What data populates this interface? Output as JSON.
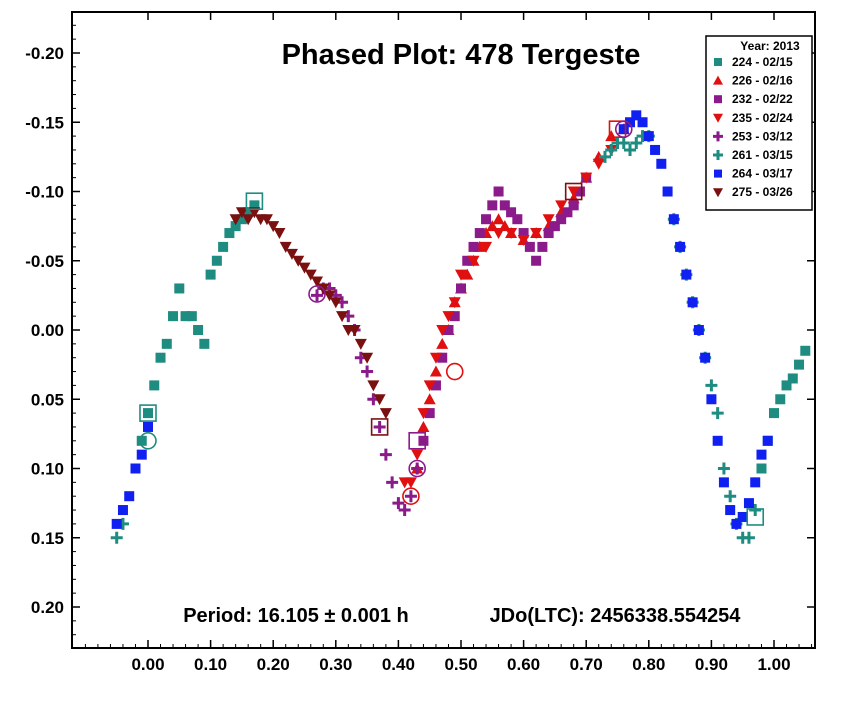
{
  "chart_data": {
    "type": "scatter",
    "title": "Phased Plot: 478 Tergeste",
    "annotations": {
      "period": "Period: 16.105 ± 0.001 h",
      "epoch": "JDo(LTC): 2456338.554254"
    },
    "legend": {
      "title": "Year: 2013",
      "placement": "top-right"
    },
    "xlim": [
      -0.1,
      1.08
    ],
    "ylim": [
      0.25,
      -0.25
    ],
    "x_ticks": [
      "0.00",
      "0.10",
      "0.20",
      "0.30",
      "0.40",
      "0.50",
      "0.60",
      "0.70",
      "0.80",
      "0.90",
      "1.00"
    ],
    "x_tick_values": [
      0.0,
      0.1,
      0.2,
      0.3,
      0.4,
      0.5,
      0.6,
      0.7,
      0.8,
      0.9,
      1.0
    ],
    "y_ticks": [
      "-0.20",
      "-0.15",
      "-0.10",
      "-0.05",
      "0.00",
      "0.05",
      "0.10",
      "0.15",
      "0.20"
    ],
    "y_tick_values": [
      -0.2,
      -0.15,
      -0.1,
      -0.05,
      0.0,
      0.05,
      0.1,
      0.15,
      0.2
    ],
    "grid": false,
    "series": [
      {
        "name": "224 - 02/15",
        "color": "#1e8c80",
        "marker": "square",
        "x": [
          -0.01,
          0.0,
          0.01,
          0.02,
          0.03,
          0.04,
          0.05,
          0.06,
          0.07,
          0.08,
          0.09,
          0.1,
          0.11,
          0.12,
          0.13,
          0.14,
          0.15,
          0.16,
          0.17,
          0.98,
          0.99,
          1.0,
          1.01,
          1.02,
          1.03,
          1.04,
          1.05
        ],
        "y": [
          0.08,
          0.06,
          0.04,
          0.02,
          0.01,
          -0.01,
          -0.03,
          -0.01,
          -0.01,
          0.0,
          0.01,
          -0.04,
          -0.05,
          -0.06,
          -0.07,
          -0.075,
          -0.08,
          -0.085,
          -0.09,
          0.1,
          0.08,
          0.06,
          0.05,
          0.04,
          0.035,
          0.025,
          0.015
        ]
      },
      {
        "name": "226 - 02/16",
        "color": "#e01010",
        "marker": "triangle-up",
        "x": [
          0.43,
          0.44,
          0.45,
          0.46,
          0.47,
          0.48,
          0.49,
          0.5,
          0.51,
          0.52,
          0.53,
          0.54,
          0.55,
          0.56,
          0.57,
          0.58,
          0.6,
          0.62,
          0.64,
          0.66,
          0.68,
          0.7,
          0.72,
          0.74,
          0.76
        ],
        "y": [
          0.1,
          0.07,
          0.05,
          0.03,
          0.01,
          0.0,
          -0.02,
          -0.03,
          -0.04,
          -0.05,
          -0.06,
          -0.07,
          -0.075,
          -0.08,
          -0.075,
          -0.07,
          -0.065,
          -0.07,
          -0.075,
          -0.085,
          -0.095,
          -0.11,
          -0.125,
          -0.14,
          -0.145
        ]
      },
      {
        "name": "232 - 02/22",
        "color": "#8b1a8b",
        "marker": "square",
        "x": [
          0.44,
          0.45,
          0.46,
          0.47,
          0.48,
          0.49,
          0.5,
          0.51,
          0.52,
          0.53,
          0.54,
          0.55,
          0.56,
          0.57,
          0.58,
          0.59,
          0.6,
          0.61,
          0.62,
          0.63,
          0.64,
          0.65,
          0.66,
          0.67,
          0.68,
          0.69,
          0.7
        ],
        "y": [
          0.08,
          0.06,
          0.04,
          0.02,
          0.0,
          -0.01,
          -0.03,
          -0.05,
          -0.06,
          -0.07,
          -0.08,
          -0.09,
          -0.1,
          -0.09,
          -0.085,
          -0.08,
          -0.07,
          -0.06,
          -0.05,
          -0.06,
          -0.07,
          -0.075,
          -0.08,
          -0.085,
          -0.09,
          -0.1,
          -0.11
        ]
      },
      {
        "name": "235 - 02/24",
        "color": "#e01010",
        "marker": "triangle-down",
        "x": [
          0.41,
          0.42,
          0.43,
          0.44,
          0.45,
          0.46,
          0.47,
          0.48,
          0.49,
          0.5,
          0.52,
          0.54,
          0.56,
          0.58,
          0.6,
          0.62,
          0.64,
          0.66,
          0.68,
          0.7,
          0.72,
          0.74
        ],
        "y": [
          0.11,
          0.11,
          0.09,
          0.06,
          0.04,
          0.02,
          0.0,
          -0.01,
          -0.02,
          -0.04,
          -0.05,
          -0.06,
          -0.07,
          -0.07,
          -0.065,
          -0.07,
          -0.08,
          -0.09,
          -0.1,
          -0.11,
          -0.12,
          -0.13
        ]
      },
      {
        "name": "253 - 03/12",
        "color": "#8b1a8b",
        "marker": "plus",
        "x": [
          0.27,
          0.28,
          0.29,
          0.3,
          0.31,
          0.32,
          0.33,
          0.34,
          0.35,
          0.36,
          0.37,
          0.38,
          0.39,
          0.4,
          0.41,
          0.42,
          0.43
        ],
        "y": [
          -0.025,
          -0.03,
          -0.03,
          -0.025,
          -0.02,
          -0.01,
          0.0,
          0.02,
          0.03,
          0.05,
          0.07,
          0.09,
          0.11,
          0.125,
          0.13,
          0.12,
          0.1
        ]
      },
      {
        "name": "261 - 03/15",
        "color": "#1e8c80",
        "marker": "plus",
        "x": [
          -0.05,
          -0.04,
          0.73,
          0.74,
          0.75,
          0.76,
          0.77,
          0.78,
          0.79,
          0.8,
          0.84,
          0.85,
          0.86,
          0.87,
          0.88,
          0.89,
          0.9,
          0.91,
          0.92,
          0.93,
          0.94,
          0.95,
          0.96,
          0.97
        ],
        "y": [
          0.15,
          0.14,
          -0.125,
          -0.13,
          -0.135,
          -0.135,
          -0.13,
          -0.135,
          -0.14,
          -0.14,
          -0.08,
          -0.06,
          -0.04,
          -0.02,
          0.0,
          0.02,
          0.04,
          0.06,
          0.1,
          0.12,
          0.14,
          0.15,
          0.15,
          0.13
        ]
      },
      {
        "name": "264 - 03/17",
        "color": "#1020f0",
        "marker": "square",
        "x": [
          -0.05,
          -0.04,
          -0.03,
          -0.02,
          -0.01,
          0.0,
          0.76,
          0.77,
          0.78,
          0.79,
          0.8,
          0.81,
          0.82,
          0.83,
          0.84,
          0.85,
          0.86,
          0.87,
          0.88,
          0.89,
          0.9,
          0.91,
          0.92,
          0.93,
          0.94,
          0.95,
          0.96,
          0.97,
          0.98,
          0.99
        ],
        "y": [
          0.14,
          0.13,
          0.12,
          0.1,
          0.09,
          0.07,
          -0.145,
          -0.15,
          -0.155,
          -0.15,
          -0.14,
          -0.13,
          -0.12,
          -0.1,
          -0.08,
          -0.06,
          -0.04,
          -0.02,
          0.0,
          0.02,
          0.05,
          0.08,
          0.11,
          0.13,
          0.14,
          0.135,
          0.125,
          0.11,
          0.09,
          0.08
        ]
      },
      {
        "name": "275 - 03/26",
        "color": "#7a1010",
        "marker": "triangle-down",
        "x": [
          0.14,
          0.15,
          0.16,
          0.17,
          0.18,
          0.19,
          0.2,
          0.21,
          0.22,
          0.23,
          0.24,
          0.25,
          0.26,
          0.27,
          0.28,
          0.29,
          0.3,
          0.31,
          0.32,
          0.33,
          0.34,
          0.35,
          0.36,
          0.37,
          0.38
        ],
        "y": [
          -0.08,
          -0.085,
          -0.08,
          -0.085,
          -0.08,
          -0.08,
          -0.075,
          -0.07,
          -0.06,
          -0.055,
          -0.05,
          -0.045,
          -0.04,
          -0.035,
          -0.03,
          -0.025,
          -0.02,
          -0.01,
          0.0,
          0.0,
          0.01,
          0.02,
          0.04,
          0.05,
          0.06
        ]
      }
    ],
    "highlight_markers": [
      {
        "x": 0.0,
        "y": 0.06,
        "color": "#1e8c80",
        "shape": "square-outline"
      },
      {
        "x": 0.0,
        "y": 0.08,
        "color": "#1e8c80",
        "shape": "circle-outline"
      },
      {
        "x": 0.17,
        "y": -0.093,
        "color": "#1e8c80",
        "shape": "square-outline"
      },
      {
        "x": 0.27,
        "y": -0.026,
        "color": "#8b1a8b",
        "shape": "circle-outline"
      },
      {
        "x": 0.37,
        "y": 0.07,
        "color": "#7a1010",
        "shape": "square-outline"
      },
      {
        "x": 0.43,
        "y": 0.08,
        "color": "#8b1a8b",
        "shape": "square-outline"
      },
      {
        "x": 0.43,
        "y": 0.1,
        "color": "#8b1a8b",
        "shape": "circle-outline"
      },
      {
        "x": 0.42,
        "y": 0.12,
        "color": "#e01010",
        "shape": "circle-outline"
      },
      {
        "x": 0.49,
        "y": 0.03,
        "color": "#e01010",
        "shape": "circle-outline"
      },
      {
        "x": 0.68,
        "y": -0.1,
        "color": "#7a1010",
        "shape": "square-outline"
      },
      {
        "x": 0.75,
        "y": -0.145,
        "color": "#e01010",
        "shape": "square-outline"
      },
      {
        "x": 0.76,
        "y": -0.145,
        "color": "#8b1a8b",
        "shape": "circle-outline"
      },
      {
        "x": 0.97,
        "y": 0.135,
        "color": "#1e8c80",
        "shape": "square-outline"
      }
    ]
  }
}
